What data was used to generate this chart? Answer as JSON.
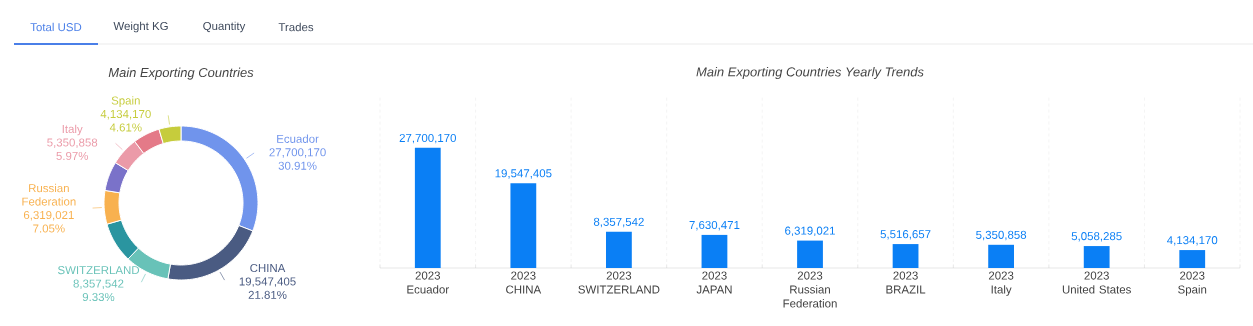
{
  "chart_data": [
    {
      "type": "other",
      "annotations": [
        "Total USD",
        "Weight KG",
        "Quantity",
        "Trades"
      ]
    },
    {
      "type": "donut",
      "title": "Main Exporting Countries",
      "categories": [
        "Ecuador",
        "CHINA",
        "SWITZERLAND",
        null,
        "Russian Federation",
        null,
        "Italy",
        null,
        "Spain"
      ],
      "values": [
        27700170,
        19547405,
        8357542,
        7630471,
        6319021,
        5516657,
        5350858,
        5058285,
        4134170
      ],
      "value_labels": [
        "27,700,170 30.91%",
        "19,547,405 21.81%",
        "8,357,542 9.33%",
        null,
        "6,319,021 7.05%",
        null,
        "5,350,858 5.97%",
        null,
        "4,134,170 4.61%"
      ],
      "colors": [
        "#7094ec",
        "#4a5b82",
        "#68c2b8",
        "#2a95a0",
        "#f8b14f",
        "#7a72c9",
        "#eb9aa8",
        "#e47a88",
        "#c6cc3c"
      ]
    },
    {
      "type": "bar",
      "title": "Main Exporting Countries Yearly Trends",
      "categories": [
        "Ecuador",
        "CHINA",
        "SWITZERLAND",
        "JAPAN",
        "Russian Federation",
        "BRAZIL",
        "Italy",
        "United States",
        "Spain"
      ],
      "series": [
        {
          "name": "2023",
          "color": "#0a7ff5",
          "values": [
            27700170,
            19547405,
            8357542,
            7630471,
            6319021,
            5516657,
            5350858,
            5058285,
            4134170
          ],
          "value_labels": [
            "27,700,170",
            "19,547,405",
            "8,357,542",
            "7,630,471",
            "6,319,021",
            "5,516,657",
            "5,350,858",
            "5,058,285",
            "4,134,170"
          ]
        }
      ],
      "grid": "x",
      "tick_labels": "x"
    }
  ]
}
